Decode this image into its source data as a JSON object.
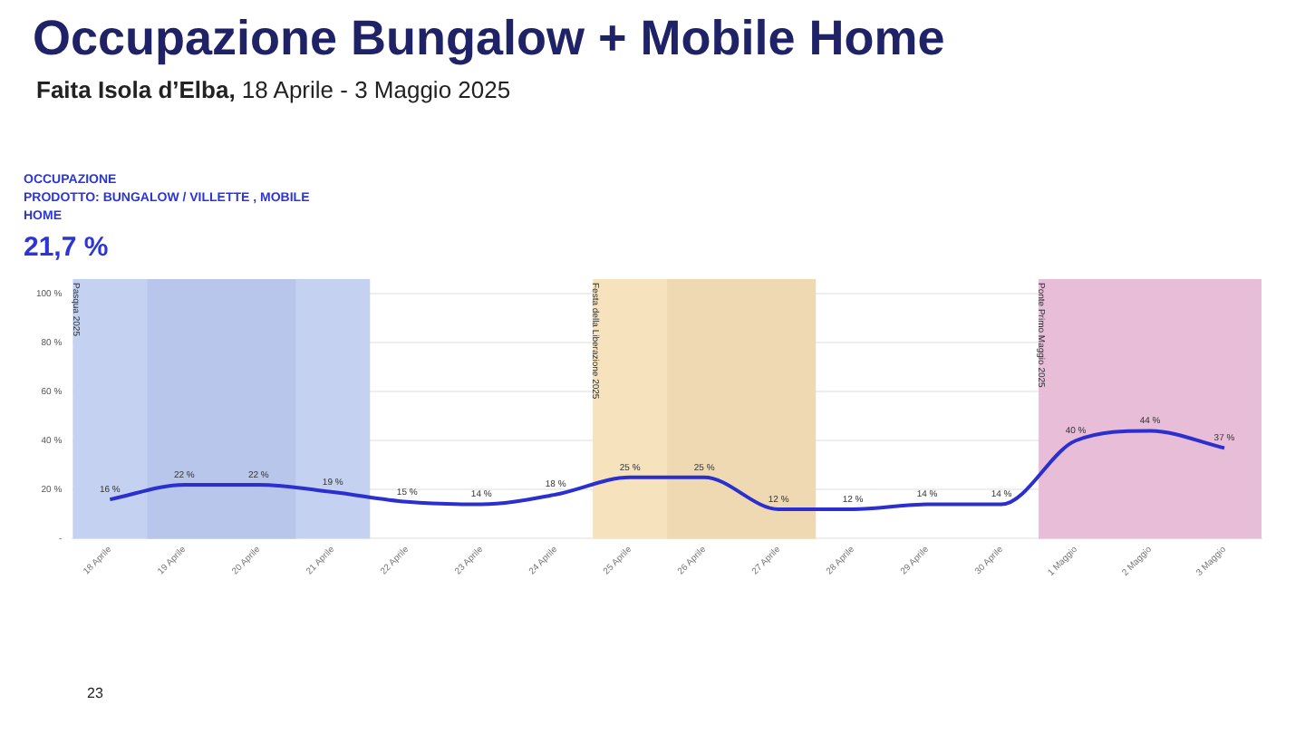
{
  "chart_data": {
    "type": "line",
    "title": "Occupazione Bungalow + Mobile Home",
    "subtitle": "Faita Isola d’Elba, 18 Aprile - 3 Maggio 2025",
    "categories": [
      "18 Aprile",
      "19 Aprile",
      "20 Aprile",
      "21 Aprile",
      "22 Aprile",
      "23 Aprile",
      "24 Aprile",
      "25 Aprile",
      "26 Aprile",
      "27 Aprile",
      "28 Aprile",
      "29 Aprile",
      "30 Aprile",
      "1 Maggio",
      "2 Maggio",
      "3 Maggio"
    ],
    "series": [
      {
        "color": "#2b2fcf",
        "values": [
          16,
          22,
          22,
          19,
          15,
          14,
          18,
          25,
          25,
          12,
          12,
          14,
          14,
          40,
          44,
          37
        ],
        "value_labels": [
          "16 %",
          "22 %",
          "22 %",
          "19 %",
          "15 %",
          "14 %",
          "18 %",
          "25 %",
          "25 %",
          "12 %",
          "12 %",
          "14 %",
          "14 %",
          "40 %",
          "44 %",
          "37 %"
        ]
      }
    ],
    "ylim": [
      0,
      100
    ],
    "yticks": [
      {
        "value": 0,
        "label": "-"
      },
      {
        "value": 20,
        "label": "20 %"
      },
      {
        "value": 40,
        "label": "40 %"
      },
      {
        "value": 60,
        "label": "60 %"
      },
      {
        "value": 80,
        "label": "80 %"
      },
      {
        "value": 100,
        "label": "100 %"
      }
    ],
    "grid": "y",
    "legend": false,
    "marker": "none",
    "line_style": "solid",
    "bands": [
      {
        "axis": "x",
        "from": "18 Aprile",
        "to": "21 Aprile",
        "label": "Pasqua 2025",
        "color": "#c4d1f1"
      },
      {
        "axis": "x",
        "from": "19 Aprile",
        "to": "20 Aprile",
        "color": "#b8c6ec"
      },
      {
        "axis": "x",
        "from": "25 Aprile",
        "to": "27 Aprile",
        "label": "Festa della Liberazione 2025",
        "color": "#f6e2bd"
      },
      {
        "axis": "x",
        "from": "26 Aprile",
        "to": "27 Aprile",
        "color": "#efd9b2"
      },
      {
        "axis": "x",
        "from": "1 Maggio",
        "to": "3 Maggio",
        "label": "Ponte Primo Maggio 2025",
        "color": "#e7bdd8"
      }
    ],
    "annotations": [
      "OCCUPAZIONE\nPRODOTTO: BUNGALOW / VILLETTE , MOBILE\nHOME",
      "21,7 %",
      "23"
    ]
  }
}
